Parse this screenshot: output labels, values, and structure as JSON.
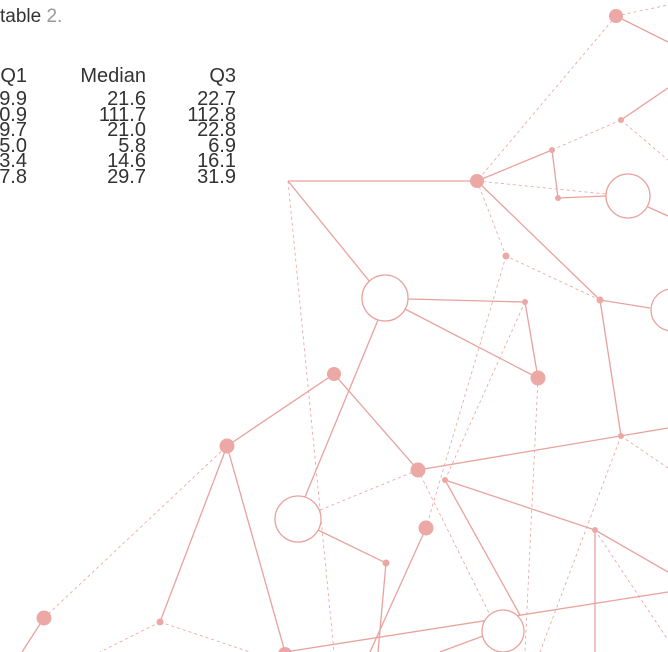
{
  "caption": {
    "text": "table ",
    "number": "2."
  },
  "table": {
    "header": [
      "Q1",
      "Median",
      "Q3"
    ],
    "rows": [
      [
        "9.9",
        "21.6",
        "22.7"
      ],
      [
        "0.9",
        "111.7",
        "112.8"
      ],
      [
        "9.7",
        "21.0",
        "22.8"
      ],
      [
        "5.0",
        "5.8",
        "6.9"
      ],
      [
        "3.4",
        "14.6",
        "16.1"
      ],
      [
        "7.8",
        "29.7",
        "31.9"
      ]
    ]
  }
}
